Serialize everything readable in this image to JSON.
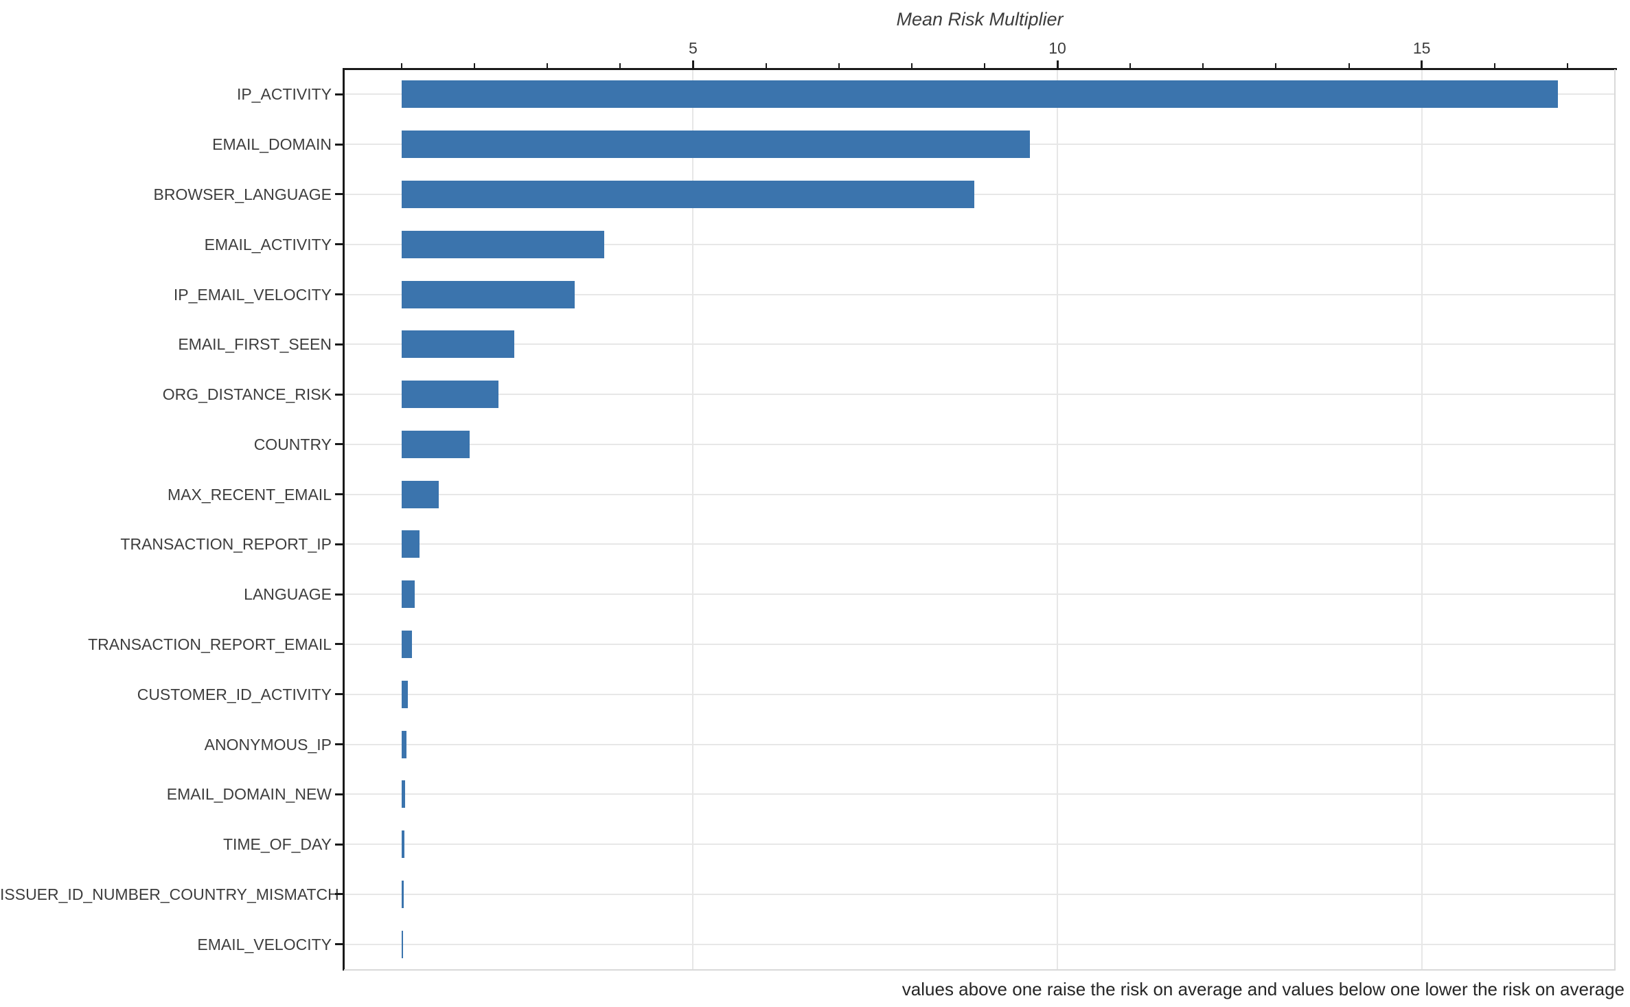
{
  "chart_data": {
    "type": "bar",
    "orientation": "horizontal",
    "title": "Mean Risk Multiplier",
    "xlabel": "Mean Risk Multiplier",
    "ylabel": "",
    "categories": [
      "IP_ACTIVITY",
      "EMAIL_DOMAIN",
      "BROWSER_LANGUAGE",
      "EMAIL_ACTIVITY",
      "IP_EMAIL_VELOCITY",
      "EMAIL_FIRST_SEEN",
      "ORG_DISTANCE_RISK",
      "COUNTRY",
      "MAX_RECENT_EMAIL",
      "TRANSACTION_REPORT_IP",
      "LANGUAGE",
      "TRANSACTION_REPORT_EMAIL",
      "CUSTOMER_ID_ACTIVITY",
      "ANONYMOUS_IP",
      "EMAIL_DOMAIN_NEW",
      "TIME_OF_DAY",
      "ISSUER_ID_NUMBER_COUNTRY_MISMATCH",
      "EMAIL_VELOCITY"
    ],
    "values": [
      16.87,
      9.62,
      8.86,
      3.78,
      3.38,
      2.55,
      2.33,
      1.93,
      1.51,
      1.25,
      1.18,
      1.14,
      1.09,
      1.07,
      1.05,
      1.04,
      1.03,
      1.02
    ],
    "bar_baseline": 1,
    "xlim": [
      0.21,
      17.66
    ],
    "x_major_ticks": [
      5,
      10,
      15
    ],
    "x_major_tick_labels": [
      "5",
      "10",
      "15"
    ],
    "x_minor_ticks": [
      1,
      2,
      3,
      4,
      6,
      7,
      8,
      9,
      11,
      12,
      13,
      14,
      16,
      17
    ],
    "axis_position": "top",
    "grid": "on",
    "legend_position": "none",
    "bar_color": "#3b74ad",
    "grid_color": "#e7e7e7",
    "text_color": "#3d3d3d"
  },
  "caption": "values above one raise the risk on average and values below one lower the risk on average"
}
